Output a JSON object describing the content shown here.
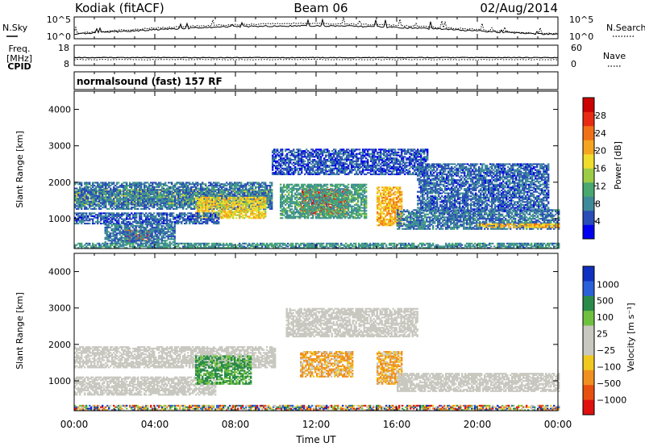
{
  "header": {
    "station": "Kodiak (fitACF)",
    "beam": "Beam 06",
    "date": "02/Aug/2014"
  },
  "top_panels": {
    "nsky_label": "N.Sky",
    "nsearch_label": "N.Search",
    "noise_ticks": [
      "10^5",
      "10^0"
    ],
    "freq_label": "Freq.",
    "freq_unit": "[MHz]",
    "freq_ticks": [
      "18",
      "8"
    ],
    "nave_label": "Nave",
    "nave_ticks": [
      "60",
      "0"
    ],
    "cpid_label": "CPID",
    "cpid_value": "normalsound (fast) 157 RF"
  },
  "x_axis": {
    "label": "Time UT",
    "ticks": [
      "00:00",
      "04:00",
      "08:00",
      "12:00",
      "16:00",
      "20:00",
      "00:00"
    ]
  },
  "colors": {
    "power": [
      "#0000f0",
      "#2a4db8",
      "#3f8a9a",
      "#48a870",
      "#9ccc46",
      "#f0dc2c",
      "#f5a520",
      "#f07018",
      "#e82a12",
      "#cc0000"
    ],
    "velocity": [
      "#1030c0",
      "#2a60d8",
      "#2a8a4a",
      "#70c040",
      "#c8c8c0",
      "#c8c8c0",
      "#f0c820",
      "#f09020",
      "#e85010",
      "#e01010"
    ],
    "ground_scatter": "#c8c8c0"
  },
  "chart_data": [
    {
      "type": "heatmap",
      "panel": "power",
      "ylabel": "Slant Range [km]",
      "xlabel": "Time UT",
      "x_range_hours": [
        0,
        24
      ],
      "ylim": [
        180,
        4500
      ],
      "yticks": [
        "1000",
        "2000",
        "3000",
        "4000"
      ],
      "colorbar": {
        "label": "Power [dB]",
        "range": [
          0,
          32
        ],
        "ticks": [
          "4",
          "8",
          "12",
          "16",
          "20",
          "24",
          "28"
        ]
      },
      "bands": [
        {
          "t0": 0.0,
          "t1": 9.8,
          "r0": 1380,
          "r1": 1800,
          "level": 15
        },
        {
          "t0": 0.0,
          "t1": 9.8,
          "r0": 1250,
          "r1": 2000,
          "level": 7
        },
        {
          "t0": 6.0,
          "t1": 9.5,
          "r0": 1000,
          "r1": 1600,
          "level": 18
        },
        {
          "t0": 2.5,
          "t1": 3.8,
          "r0": 380,
          "r1": 700,
          "level": 26
        },
        {
          "t0": 1.5,
          "t1": 5.0,
          "r0": 300,
          "r1": 850,
          "level": 7
        },
        {
          "t0": 0.0,
          "t1": 7.2,
          "r0": 850,
          "r1": 1150,
          "level": 6
        },
        {
          "t0": 11.2,
          "t1": 13.6,
          "r0": 1100,
          "r1": 1800,
          "level": 27
        },
        {
          "t0": 10.2,
          "t1": 14.5,
          "r0": 1000,
          "r1": 1950,
          "level": 10
        },
        {
          "t0": 15.0,
          "t1": 16.2,
          "r0": 800,
          "r1": 1850,
          "level": 20
        },
        {
          "t0": 16.0,
          "t1": 24.0,
          "r0": 700,
          "r1": 1250,
          "level": 7
        },
        {
          "t0": 20.0,
          "t1": 24.0,
          "r0": 750,
          "r1": 850,
          "level": 20
        },
        {
          "t0": 9.8,
          "t1": 17.5,
          "r0": 2200,
          "r1": 2900,
          "level": 5
        },
        {
          "t0": 17.0,
          "t1": 23.5,
          "r0": 1200,
          "r1": 2500,
          "level": 6
        },
        {
          "t0": 0.0,
          "t1": 24.0,
          "r0": 180,
          "r1": 320,
          "level": 9
        }
      ]
    },
    {
      "type": "heatmap",
      "panel": "velocity",
      "ylabel": "Slant Range [km]",
      "xlabel": "Time UT",
      "x_range_hours": [
        0,
        24
      ],
      "ylim": [
        180,
        4500
      ],
      "yticks": [
        "1000",
        "2000",
        "3000",
        "4000"
      ],
      "colorbar": {
        "label": "Velocity [m s⁻¹]",
        "ticks": [
          "1000",
          "500",
          "100",
          "25",
          "−25",
          "−100",
          "−500",
          "−1000"
        ]
      },
      "bands": [
        {
          "t0": 0.0,
          "t1": 10.0,
          "r0": 1350,
          "r1": 1950,
          "kind": "ground"
        },
        {
          "t0": 0.0,
          "t1": 7.0,
          "r0": 600,
          "r1": 1100,
          "kind": "ground"
        },
        {
          "t0": 6.0,
          "t1": 8.8,
          "r0": 900,
          "r1": 1700,
          "kind": "green"
        },
        {
          "t0": 10.5,
          "t1": 17.0,
          "r0": 2200,
          "r1": 3000,
          "kind": "ground"
        },
        {
          "t0": 11.2,
          "t1": 13.8,
          "r0": 1100,
          "r1": 1800,
          "kind": "orange"
        },
        {
          "t0": 15.0,
          "t1": 16.2,
          "r0": 900,
          "r1": 1800,
          "kind": "orange"
        },
        {
          "t0": 16.0,
          "t1": 24.0,
          "r0": 700,
          "r1": 1200,
          "kind": "ground"
        },
        {
          "t0": 0.0,
          "t1": 24.0,
          "r0": 180,
          "r1": 320,
          "kind": "mixed"
        }
      ]
    }
  ]
}
